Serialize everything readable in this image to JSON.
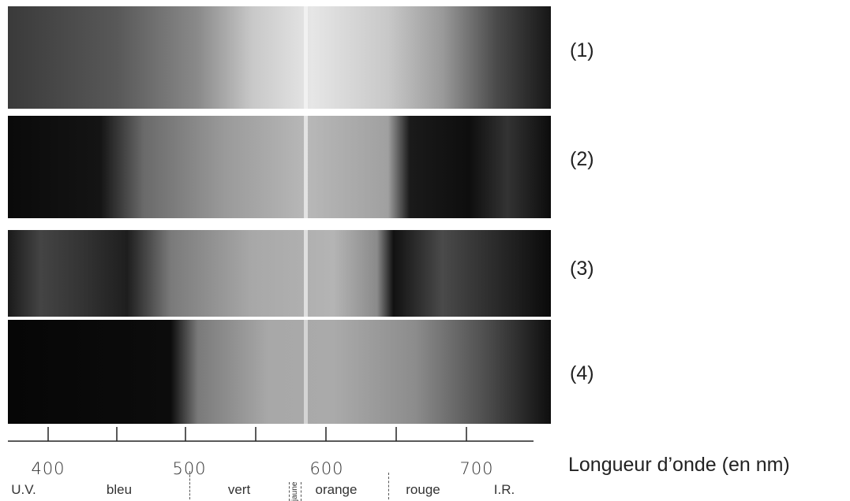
{
  "spectra": [
    {
      "label": "(1)"
    },
    {
      "label": "(2)"
    },
    {
      "label": "(3)"
    },
    {
      "label": "(4)"
    }
  ],
  "axis": {
    "title": "Longueur d’onde (en nm)",
    "tick_labels": [
      "400",
      "500",
      "600",
      "700"
    ],
    "color_bands": [
      "U.V.",
      "bleu",
      "vert",
      "jaune",
      "orange",
      "rouge",
      "I.R."
    ]
  }
}
